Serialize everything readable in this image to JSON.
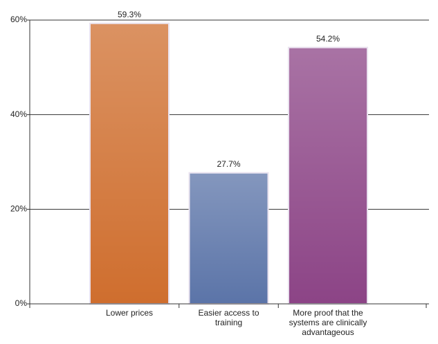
{
  "chart_data": {
    "type": "bar",
    "categories": [
      "Lower prices",
      "Easier access to training",
      "More proof that the systems are clinically advantageous"
    ],
    "values": [
      59.3,
      27.7,
      54.2
    ],
    "value_labels": [
      "59.3%",
      "27.7%",
      "54.2%"
    ],
    "colors": [
      "#cf6e2e",
      "#5b74a8",
      "#8c4486"
    ],
    "ylim": [
      0,
      60
    ],
    "yticks": [
      {
        "value": 0,
        "label": "0%"
      },
      {
        "value": 20,
        "label": "20%"
      },
      {
        "value": 40,
        "label": "40%"
      },
      {
        "value": 60,
        "label": "60%"
      }
    ],
    "grid": true
  }
}
